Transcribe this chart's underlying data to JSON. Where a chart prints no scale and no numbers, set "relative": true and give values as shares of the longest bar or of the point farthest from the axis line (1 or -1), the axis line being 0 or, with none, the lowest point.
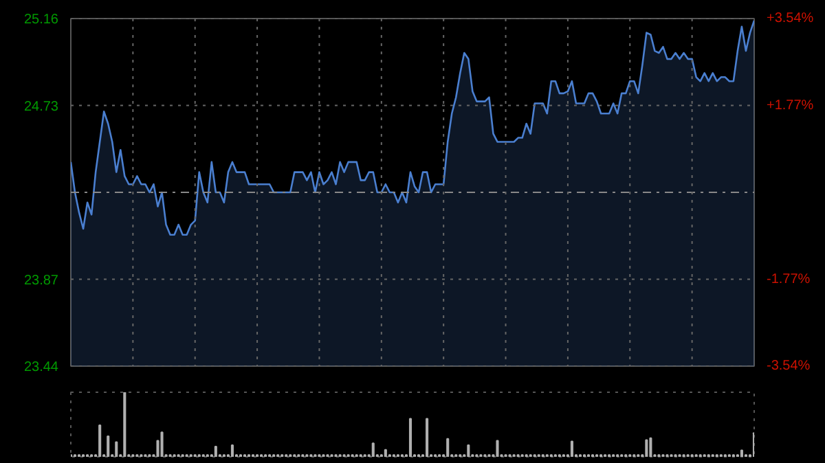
{
  "chart_data": [
    {
      "type": "area",
      "categories": [
        null,
        null,
        null,
        null,
        null,
        null,
        null,
        null,
        null,
        null,
        null,
        null,
        null,
        null,
        null,
        null,
        null,
        null,
        null,
        null,
        null,
        null,
        null,
        null,
        null,
        null,
        null,
        null,
        null,
        null,
        null,
        null,
        null,
        null,
        null,
        null,
        null,
        null,
        null,
        null,
        null,
        null,
        null,
        null,
        null,
        null,
        null,
        null,
        null,
        null,
        null,
        null,
        null,
        null,
        null,
        null,
        null,
        null,
        null,
        null,
        null,
        null,
        null,
        null,
        null,
        null,
        null,
        null,
        null,
        null,
        null,
        null,
        null,
        null,
        null,
        null,
        null,
        null,
        null,
        null,
        null,
        null,
        null,
        null,
        null,
        null,
        null,
        null,
        null,
        null,
        null,
        null,
        null,
        null,
        null,
        null,
        null,
        null,
        null,
        null,
        null,
        null,
        null,
        null,
        null,
        null,
        null,
        null,
        null,
        null,
        null,
        null,
        null,
        null,
        null,
        null,
        null,
        null,
        null,
        null,
        null,
        null,
        null,
        null,
        null,
        null,
        null,
        null,
        null,
        null,
        null,
        null,
        null,
        null,
        null,
        null,
        null,
        null,
        null,
        null,
        null,
        null,
        null,
        null,
        null,
        null,
        null,
        null,
        null,
        null,
        null,
        null,
        null,
        null,
        null,
        null,
        null,
        null,
        null,
        null,
        null,
        null,
        null,
        null,
        null,
        null
      ],
      "series": [
        {
          "color": "#4a7fd0",
          "values": [
            24.45,
            24.3,
            24.2,
            24.12,
            24.25,
            24.19,
            24.4,
            24.55,
            24.7,
            24.64,
            24.55,
            24.4,
            24.51,
            24.38,
            24.34,
            24.34,
            24.38,
            24.34,
            24.34,
            24.3,
            24.34,
            24.23,
            24.3,
            24.14,
            24.09,
            24.09,
            24.14,
            24.09,
            24.09,
            24.14,
            24.16,
            24.4,
            24.3,
            24.25,
            24.45,
            24.3,
            24.3,
            24.25,
            24.4,
            24.45,
            24.4,
            24.4,
            24.4,
            24.34,
            24.34,
            24.34,
            24.34,
            24.34,
            24.34,
            24.3,
            24.3,
            24.3,
            24.3,
            24.3,
            24.4,
            24.4,
            24.4,
            24.36,
            24.4,
            24.3,
            24.4,
            24.34,
            24.36,
            24.4,
            24.34,
            24.45,
            24.4,
            24.45,
            24.45,
            24.45,
            24.36,
            24.36,
            24.4,
            24.4,
            24.3,
            24.3,
            24.34,
            24.3,
            24.3,
            24.25,
            24.3,
            24.25,
            24.4,
            24.33,
            24.3,
            24.4,
            24.4,
            24.3,
            24.34,
            24.34,
            24.34,
            24.55,
            24.69,
            24.77,
            24.89,
            24.99,
            24.96,
            24.8,
            24.75,
            24.75,
            24.75,
            24.77,
            24.59,
            24.55,
            24.55,
            24.55,
            24.55,
            24.55,
            24.57,
            24.57,
            24.64,
            24.59,
            24.74,
            24.74,
            24.74,
            24.69,
            24.85,
            24.85,
            24.79,
            24.79,
            24.8,
            24.85,
            24.74,
            24.74,
            24.74,
            24.79,
            24.79,
            24.75,
            24.69,
            24.69,
            24.69,
            24.74,
            24.69,
            24.79,
            24.79,
            24.85,
            24.85,
            24.79,
            24.93,
            25.09,
            25.08,
            25.0,
            24.99,
            25.02,
            24.96,
            24.96,
            24.99,
            24.96,
            24.99,
            24.96,
            24.96,
            24.87,
            24.85,
            24.89,
            24.85,
            24.89,
            24.85,
            24.87,
            24.87,
            24.85,
            24.85,
            25.0,
            25.12,
            25.0,
            25.09,
            25.15
          ]
        }
      ],
      "ylim": [
        23.44,
        25.16
      ],
      "yticks": [
        23.44,
        23.87,
        24.73,
        25.16
      ],
      "y2lim": [
        -3.54,
        3.54
      ],
      "y2ticks": [
        {
          "value": -3.54,
          "label": "-3.54%"
        },
        {
          "value": -1.77,
          "label": "-1.77%"
        },
        {
          "value": 1.77,
          "label": "+1.77%"
        },
        {
          "value": 3.54,
          "label": "+3.54%"
        }
      ],
      "ref_lines": [
        {
          "axis": "y",
          "value": 24.3,
          "line_style": "dashdot"
        }
      ],
      "grid": true
    },
    {
      "type": "bar",
      "relative": true,
      "categories": [
        null,
        null,
        null,
        null,
        null,
        null,
        null,
        null,
        null,
        null,
        null,
        null,
        null,
        null,
        null,
        null,
        null,
        null,
        null,
        null,
        null,
        null,
        null,
        null,
        null,
        null,
        null,
        null,
        null,
        null,
        null,
        null,
        null,
        null,
        null,
        null,
        null,
        null,
        null,
        null,
        null,
        null,
        null,
        null,
        null,
        null,
        null,
        null,
        null,
        null,
        null,
        null,
        null,
        null,
        null,
        null,
        null,
        null,
        null,
        null,
        null,
        null,
        null,
        null,
        null,
        null,
        null,
        null,
        null,
        null,
        null,
        null,
        null,
        null,
        null,
        null,
        null,
        null,
        null,
        null,
        null,
        null,
        null,
        null,
        null,
        null,
        null,
        null,
        null,
        null,
        null,
        null,
        null,
        null,
        null,
        null,
        null,
        null,
        null,
        null,
        null,
        null,
        null,
        null,
        null,
        null,
        null,
        null,
        null,
        null,
        null,
        null,
        null,
        null,
        null,
        null,
        null,
        null,
        null,
        null,
        null,
        null,
        null,
        null,
        null,
        null,
        null,
        null,
        null,
        null,
        null,
        null,
        null,
        null,
        null,
        null,
        null,
        null,
        null,
        null,
        null,
        null,
        null,
        null,
        null,
        null,
        null,
        null,
        null,
        null,
        null,
        null,
        null,
        null,
        null,
        null,
        null,
        null,
        null,
        null,
        null,
        null,
        null,
        null,
        null,
        null
      ],
      "series": [
        {
          "color": "#b0b0b0",
          "values": [
            0.03,
            0.03,
            0.03,
            0.03,
            0.03,
            0.03,
            0.03,
            0.49,
            0.03,
            0.32,
            0.03,
            0.23,
            0.03,
            1,
            0.03,
            0.03,
            0.03,
            0.03,
            0.03,
            0.03,
            0.03,
            0.25,
            0.38,
            0.03,
            0.03,
            0.03,
            0.03,
            0.03,
            0.03,
            0.03,
            0.03,
            0.03,
            0.03,
            0.03,
            0.03,
            0.16,
            0.03,
            0.03,
            0.03,
            0.18,
            0.03,
            0.03,
            0.03,
            0.03,
            0.03,
            0.03,
            0.03,
            0.03,
            0.03,
            0.03,
            0.03,
            0.03,
            0.03,
            0.03,
            0.03,
            0.03,
            0.03,
            0.03,
            0.03,
            0.03,
            0.03,
            0.03,
            0.03,
            0.03,
            0.03,
            0.03,
            0.03,
            0.03,
            0.03,
            0.03,
            0.03,
            0.03,
            0.03,
            0.21,
            0.03,
            0.03,
            0.11,
            0.03,
            0.03,
            0.03,
            0.03,
            0.03,
            0.59,
            0.03,
            0.03,
            0.03,
            0.59,
            0.03,
            0.03,
            0.03,
            0.03,
            0.28,
            0.03,
            0.03,
            0.03,
            0.03,
            0.18,
            0.03,
            0.03,
            0.03,
            0.03,
            0.03,
            0.03,
            0.25,
            0.03,
            0.03,
            0.03,
            0.03,
            0.03,
            0.03,
            0.03,
            0.03,
            0.03,
            0.03,
            0.03,
            0.03,
            0.03,
            0.03,
            0.03,
            0.03,
            0.03,
            0.24,
            0.03,
            0.03,
            0.03,
            0.03,
            0.03,
            0.03,
            0.03,
            0.03,
            0.03,
            0.03,
            0.03,
            0.03,
            0.03,
            0.03,
            0.03,
            0.03,
            0.03,
            0.26,
            0.29,
            0.03,
            0.03,
            0.03,
            0.03,
            0.03,
            0.03,
            0.03,
            0.03,
            0.03,
            0.03,
            0.03,
            0.03,
            0.03,
            0.03,
            0.03,
            0.03,
            0.03,
            0.03,
            0.03,
            0.03,
            0.03,
            0.1,
            0.03,
            0.03,
            0.37
          ]
        }
      ]
    }
  ]
}
